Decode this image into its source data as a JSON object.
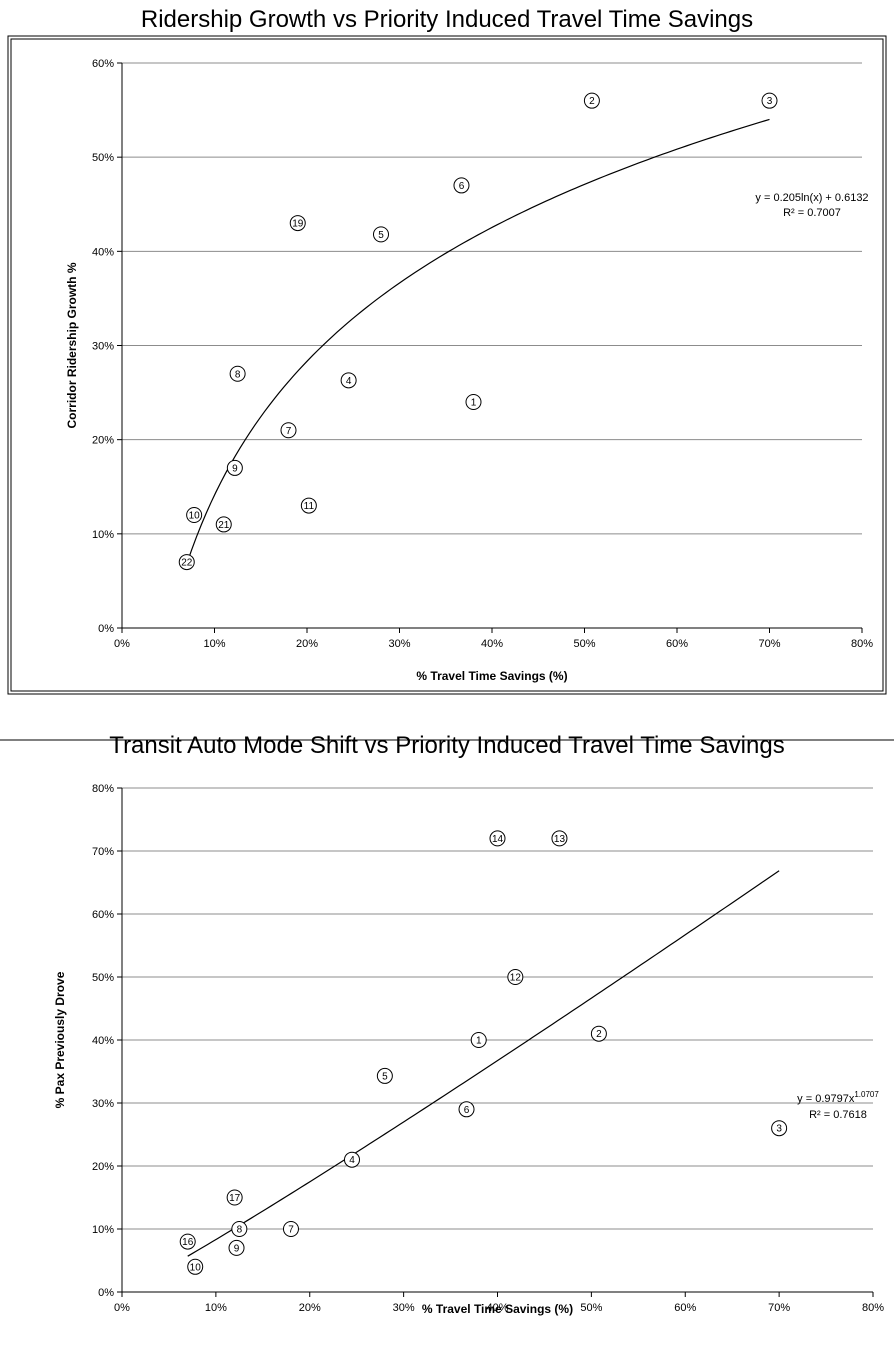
{
  "chart_data": [
    {
      "type": "scatter",
      "title": "Ridership Growth vs Priority Induced Travel Time Savings",
      "xlabel": "% Travel Time Savings (%)",
      "ylabel": "Corridor Ridership Growth %",
      "xlim": [
        0,
        80
      ],
      "ylim": [
        0,
        60
      ],
      "x_ticks": [
        "0%",
        "10%",
        "20%",
        "30%",
        "40%",
        "50%",
        "60%",
        "70%",
        "80%"
      ],
      "y_ticks": [
        "0%",
        "10%",
        "20%",
        "30%",
        "40%",
        "50%",
        "60%"
      ],
      "grid": "horizontal",
      "points": [
        {
          "label": "1",
          "x": 38,
          "y": 24
        },
        {
          "label": "2",
          "x": 50.8,
          "y": 56
        },
        {
          "label": "3",
          "x": 70,
          "y": 56
        },
        {
          "label": "4",
          "x": 24.5,
          "y": 26.3
        },
        {
          "label": "5",
          "x": 28,
          "y": 41.8
        },
        {
          "label": "6",
          "x": 36.7,
          "y": 47
        },
        {
          "label": "7",
          "x": 18,
          "y": 21
        },
        {
          "label": "8",
          "x": 12.5,
          "y": 27
        },
        {
          "label": "9",
          "x": 12.2,
          "y": 17
        },
        {
          "label": "10",
          "x": 7.8,
          "y": 12
        },
        {
          "label": "11",
          "x": 20.2,
          "y": 13
        },
        {
          "label": "19",
          "x": 19,
          "y": 43
        },
        {
          "label": "21",
          "x": 11,
          "y": 11
        },
        {
          "label": "22",
          "x": 7,
          "y": 7
        }
      ],
      "trendline": {
        "type": "log",
        "a": 0.205,
        "b": 0.6132,
        "x_range": [
          7,
          70
        ]
      },
      "equation": "y = 0.205ln(x) + 0.6132",
      "r2": "R² = 0.7007"
    },
    {
      "type": "scatter",
      "title": "Transit Auto Mode Shift vs Priority Induced Travel Time Savings",
      "xlabel": "% Travel Time Savings (%)",
      "ylabel": "% Pax Previously Drove",
      "xlim": [
        0,
        80
      ],
      "ylim": [
        0,
        80
      ],
      "x_ticks": [
        "0%",
        "10%",
        "20%",
        "30%",
        "40%",
        "50%",
        "60%",
        "70%",
        "80%"
      ],
      "y_ticks": [
        "0%",
        "10%",
        "20%",
        "30%",
        "40%",
        "50%",
        "60%",
        "70%",
        "80%"
      ],
      "grid": "horizontal",
      "points": [
        {
          "label": "1",
          "x": 38,
          "y": 40
        },
        {
          "label": "2",
          "x": 50.8,
          "y": 41
        },
        {
          "label": "3",
          "x": 70,
          "y": 26
        },
        {
          "label": "4",
          "x": 24.5,
          "y": 21
        },
        {
          "label": "5",
          "x": 28,
          "y": 34.3
        },
        {
          "label": "6",
          "x": 36.7,
          "y": 29
        },
        {
          "label": "7",
          "x": 18,
          "y": 10
        },
        {
          "label": "8",
          "x": 12.5,
          "y": 10
        },
        {
          "label": "9",
          "x": 12.2,
          "y": 7
        },
        {
          "label": "10",
          "x": 7.8,
          "y": 4
        },
        {
          "label": "12",
          "x": 41.9,
          "y": 50
        },
        {
          "label": "13",
          "x": 46.6,
          "y": 72
        },
        {
          "label": "14",
          "x": 40,
          "y": 72
        },
        {
          "label": "16",
          "x": 7,
          "y": 8
        },
        {
          "label": "17",
          "x": 12,
          "y": 15
        }
      ],
      "trendline": {
        "type": "power",
        "a": 0.9797,
        "b": 1.0707,
        "x_range": [
          7,
          70
        ]
      },
      "equation": "y = 0.9797x",
      "equation_exponent": "1.0707",
      "r2": "R² = 0.7618"
    }
  ]
}
